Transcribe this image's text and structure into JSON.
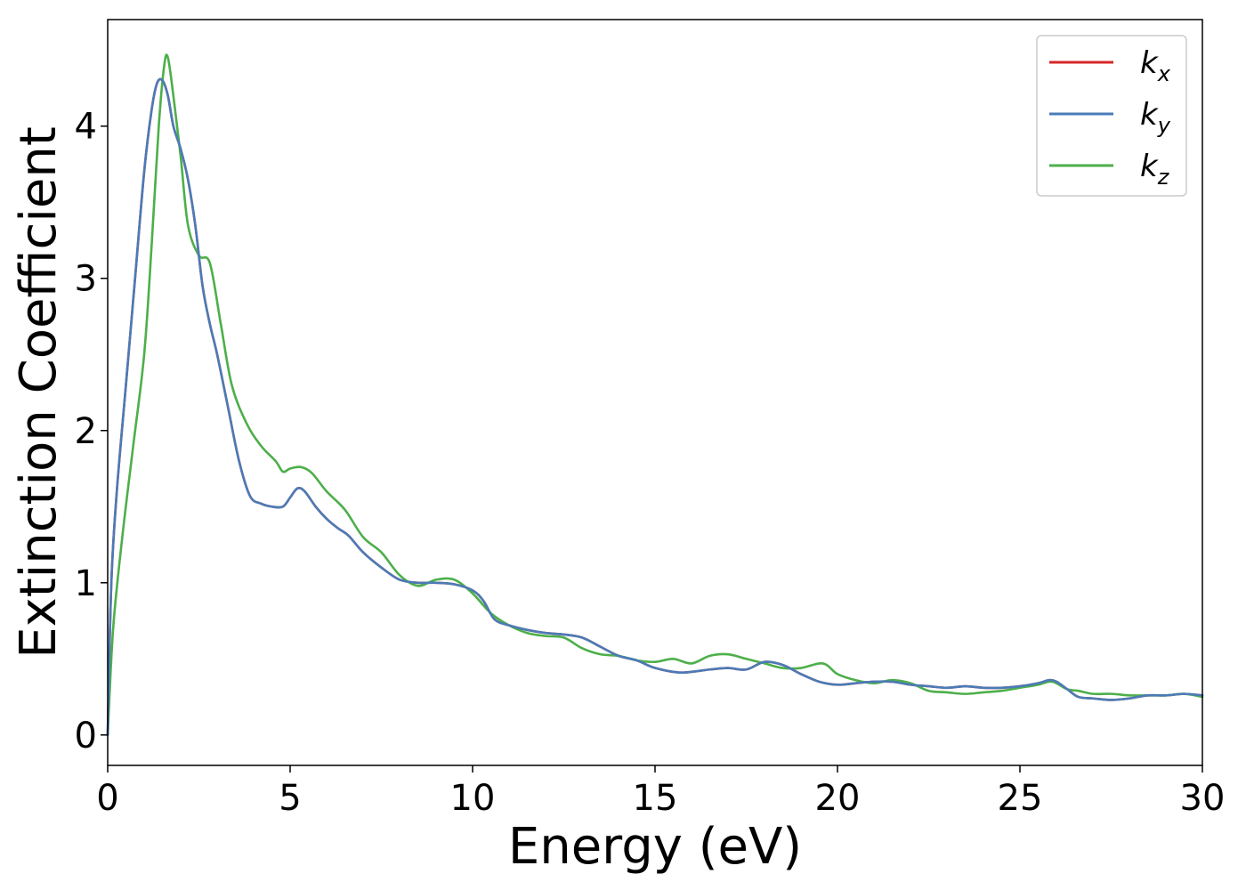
{
  "chart_data": {
    "type": "line",
    "xlabel": "Energy (eV)",
    "ylabel": "Extinction Coefficient",
    "xlim": [
      0,
      30
    ],
    "ylim": [
      -0.2,
      4.7
    ],
    "xticks": [
      0,
      5,
      10,
      15,
      20,
      25,
      30
    ],
    "xtick_labels": [
      "0",
      "5",
      "10",
      "15",
      "20",
      "25",
      "30"
    ],
    "yticks": [
      0,
      1,
      2,
      3,
      4
    ],
    "ytick_labels": [
      "0",
      "1",
      "2",
      "3",
      "4"
    ],
    "grid": false,
    "legend_position": "top-right",
    "series": [
      {
        "name": "k_x",
        "label_base": "k",
        "label_sub": "x",
        "color": "#d62728",
        "x": [
          0,
          0.1,
          0.25,
          0.5,
          0.75,
          1.0,
          1.2,
          1.35,
          1.5,
          1.65,
          1.8,
          2.0,
          2.2,
          2.4,
          2.6,
          2.8,
          3.0,
          3.3,
          3.6,
          3.9,
          4.2,
          4.5,
          4.8,
          5.0,
          5.2,
          5.4,
          5.7,
          6.0,
          6.3,
          6.6,
          7.0,
          7.5,
          8.0,
          8.5,
          9.0,
          9.5,
          10.0,
          10.3,
          10.6,
          11.0,
          11.5,
          12.0,
          12.5,
          13.0,
          13.5,
          14.0,
          14.5,
          15.0,
          15.7,
          16.5,
          17.0,
          17.5,
          18.0,
          18.5,
          19.0,
          19.5,
          20.0,
          20.5,
          21.0,
          21.5,
          22.0,
          22.5,
          23.0,
          23.5,
          24.0,
          24.5,
          25.0,
          25.5,
          25.8,
          26.0,
          26.3,
          26.6,
          27.0,
          27.5,
          28.0,
          28.5,
          29.0,
          29.5,
          30.0
        ],
        "y": [
          0.0,
          1.0,
          1.6,
          2.3,
          3.0,
          3.7,
          4.1,
          4.28,
          4.3,
          4.2,
          4.0,
          3.85,
          3.65,
          3.35,
          2.95,
          2.7,
          2.5,
          2.15,
          1.8,
          1.57,
          1.52,
          1.5,
          1.5,
          1.56,
          1.62,
          1.6,
          1.5,
          1.42,
          1.36,
          1.31,
          1.2,
          1.1,
          1.02,
          1.0,
          1.0,
          0.99,
          0.95,
          0.88,
          0.76,
          0.72,
          0.69,
          0.67,
          0.66,
          0.64,
          0.58,
          0.52,
          0.49,
          0.44,
          0.41,
          0.43,
          0.44,
          0.43,
          0.48,
          0.46,
          0.4,
          0.35,
          0.33,
          0.34,
          0.35,
          0.35,
          0.33,
          0.32,
          0.31,
          0.32,
          0.31,
          0.31,
          0.32,
          0.34,
          0.36,
          0.35,
          0.3,
          0.25,
          0.24,
          0.23,
          0.24,
          0.26,
          0.26,
          0.27,
          0.26
        ]
      },
      {
        "name": "k_y",
        "label_base": "k",
        "label_sub": "y",
        "color": "#4a7bb7",
        "x": [
          0,
          0.1,
          0.25,
          0.5,
          0.75,
          1.0,
          1.2,
          1.35,
          1.5,
          1.65,
          1.8,
          2.0,
          2.2,
          2.4,
          2.6,
          2.8,
          3.0,
          3.3,
          3.6,
          3.9,
          4.2,
          4.5,
          4.8,
          5.0,
          5.2,
          5.4,
          5.7,
          6.0,
          6.3,
          6.6,
          7.0,
          7.5,
          8.0,
          8.5,
          9.0,
          9.5,
          10.0,
          10.3,
          10.6,
          11.0,
          11.5,
          12.0,
          12.5,
          13.0,
          13.5,
          14.0,
          14.5,
          15.0,
          15.7,
          16.5,
          17.0,
          17.5,
          18.0,
          18.5,
          19.0,
          19.5,
          20.0,
          20.5,
          21.0,
          21.5,
          22.0,
          22.5,
          23.0,
          23.5,
          24.0,
          24.5,
          25.0,
          25.5,
          25.8,
          26.0,
          26.3,
          26.6,
          27.0,
          27.5,
          28.0,
          28.5,
          29.0,
          29.5,
          30.0
        ],
        "y": [
          0.0,
          1.0,
          1.6,
          2.3,
          3.0,
          3.7,
          4.1,
          4.28,
          4.3,
          4.2,
          4.0,
          3.85,
          3.65,
          3.35,
          2.95,
          2.7,
          2.5,
          2.15,
          1.8,
          1.57,
          1.52,
          1.5,
          1.5,
          1.56,
          1.62,
          1.6,
          1.5,
          1.42,
          1.36,
          1.31,
          1.2,
          1.1,
          1.02,
          1.0,
          1.0,
          0.99,
          0.95,
          0.88,
          0.76,
          0.72,
          0.69,
          0.67,
          0.66,
          0.64,
          0.58,
          0.52,
          0.49,
          0.44,
          0.41,
          0.43,
          0.44,
          0.43,
          0.48,
          0.46,
          0.4,
          0.35,
          0.33,
          0.34,
          0.35,
          0.35,
          0.33,
          0.32,
          0.31,
          0.32,
          0.31,
          0.31,
          0.32,
          0.34,
          0.36,
          0.35,
          0.3,
          0.25,
          0.24,
          0.23,
          0.24,
          0.26,
          0.26,
          0.27,
          0.26
        ]
      },
      {
        "name": "k_z",
        "label_base": "k",
        "label_sub": "z",
        "color": "#4daf4a",
        "x": [
          0,
          0.15,
          0.4,
          0.7,
          1.0,
          1.2,
          1.4,
          1.55,
          1.65,
          1.8,
          2.0,
          2.2,
          2.5,
          2.8,
          3.1,
          3.4,
          3.8,
          4.2,
          4.6,
          4.8,
          5.0,
          5.3,
          5.6,
          6.0,
          6.5,
          7.0,
          7.5,
          8.0,
          8.5,
          9.0,
          9.5,
          10.0,
          10.5,
          11.0,
          11.5,
          12.0,
          12.5,
          13.0,
          13.5,
          14.0,
          14.5,
          15.0,
          15.5,
          16.0,
          16.5,
          17.0,
          17.5,
          18.0,
          18.5,
          19.0,
          19.6,
          20.0,
          20.5,
          21.0,
          21.5,
          22.0,
          22.5,
          23.0,
          23.5,
          24.0,
          24.5,
          25.0,
          25.5,
          25.8,
          26.0,
          26.3,
          26.6,
          27.0,
          27.5,
          28.0,
          28.5,
          29.0,
          29.5,
          30.0
        ],
        "y": [
          0.0,
          0.7,
          1.3,
          1.9,
          2.5,
          3.2,
          4.0,
          4.4,
          4.45,
          4.2,
          3.8,
          3.35,
          3.15,
          3.1,
          2.7,
          2.3,
          2.05,
          1.9,
          1.8,
          1.73,
          1.75,
          1.76,
          1.72,
          1.6,
          1.48,
          1.3,
          1.2,
          1.05,
          0.98,
          1.02,
          1.02,
          0.93,
          0.8,
          0.72,
          0.67,
          0.65,
          0.64,
          0.57,
          0.53,
          0.52,
          0.49,
          0.48,
          0.5,
          0.47,
          0.52,
          0.53,
          0.5,
          0.47,
          0.44,
          0.44,
          0.47,
          0.4,
          0.36,
          0.34,
          0.36,
          0.34,
          0.29,
          0.28,
          0.27,
          0.28,
          0.29,
          0.31,
          0.33,
          0.35,
          0.34,
          0.3,
          0.29,
          0.27,
          0.27,
          0.26,
          0.26,
          0.26,
          0.27,
          0.25
        ]
      }
    ]
  }
}
